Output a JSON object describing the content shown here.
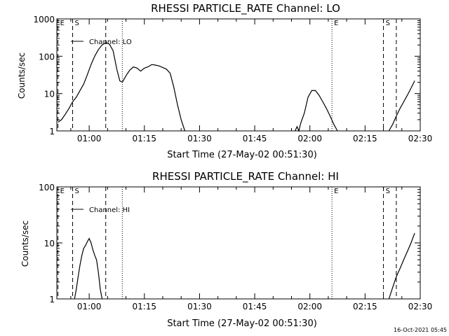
{
  "timestamp": "16-Oct-2021 05:45",
  "chart_data": [
    {
      "type": "line",
      "title": "RHESSI PARTICLE_RATE Channel: LO",
      "xlabel": "Start Time (27-May-02 00:51:30)",
      "ylabel": "Counts/sec",
      "y_scale": "log",
      "ylim": [
        1,
        1000
      ],
      "xlim_minutes": [
        -0.3,
        98.5
      ],
      "x_tick_labels": [
        "01:00",
        "01:15",
        "01:30",
        "01:45",
        "02:00",
        "02:15",
        "02:30"
      ],
      "x_tick_minutes": [
        8.5,
        23.5,
        38.5,
        53.5,
        68.5,
        83.5,
        98.5
      ],
      "y_tick_labels": [
        "1",
        "10",
        "100",
        "1000"
      ],
      "y_tick_values": [
        1,
        10,
        100,
        1000
      ],
      "legend": "top-left",
      "series": [
        {
          "name": "Channel: LO",
          "x": [
            0.0,
            1.0,
            2.0,
            3.0,
            4.0,
            5.0,
            6.0,
            7.0,
            8.0,
            9.0,
            10.0,
            11.0,
            12.0,
            13.0,
            14.0,
            15.0,
            16.0,
            16.8,
            17.5,
            18.5,
            19.5,
            20.5,
            21.5,
            22.5,
            23.5,
            24.5,
            25.5,
            26.5,
            27.5,
            28.5,
            29.5,
            30.5,
            31.5,
            32.5,
            33.5,
            34.5,
            64.5,
            65.0,
            65.5,
            66.0,
            67.0,
            68.0,
            69.0,
            70.0,
            71.0,
            72.0,
            73.0,
            74.0,
            75.0,
            76.0,
            90.0,
            91.0,
            92.0,
            93.0,
            94.0,
            95.0,
            96.0,
            97.0
          ],
          "y": [
            1.7,
            2.0,
            2.8,
            4.0,
            6.0,
            8.0,
            12.0,
            18.0,
            32.0,
            60.0,
            100.0,
            150.0,
            200.0,
            230.0,
            210.0,
            140.0,
            45.0,
            22.0,
            20.0,
            30.0,
            42.0,
            52.0,
            48.0,
            40.0,
            48.0,
            52.0,
            60.0,
            58.0,
            55.0,
            50.0,
            45.0,
            35.0,
            15.0,
            5.0,
            2.0,
            1.0,
            1.0,
            1.3,
            1.0,
            1.6,
            3.0,
            8.0,
            12.0,
            12.0,
            9.0,
            6.0,
            4.0,
            2.5,
            1.5,
            1.0,
            1.0,
            1.5,
            2.5,
            4.0,
            6.0,
            9.0,
            14.0,
            22.0
          ]
        }
      ],
      "markers": [
        {
          "label": "E",
          "minute": 0.0,
          "style": "dashed"
        },
        {
          "label": "S",
          "minute": 4.0,
          "style": "dashed"
        },
        {
          "label": "",
          "minute": 13.0,
          "style": "dashed"
        },
        {
          "label": "",
          "minute": 17.5,
          "style": "dotted"
        },
        {
          "label": "E",
          "minute": 74.5,
          "style": "dotted"
        },
        {
          "label": "S",
          "minute": 88.5,
          "style": "dashed"
        },
        {
          "label": "",
          "minute": 92.0,
          "style": "dashed"
        }
      ]
    },
    {
      "type": "line",
      "title": "RHESSI PARTICLE_RATE Channel: HI",
      "xlabel": "Start Time (27-May-02 00:51:30)",
      "ylabel": "Counts/sec",
      "y_scale": "log",
      "ylim": [
        1,
        100
      ],
      "xlim_minutes": [
        -0.3,
        98.5
      ],
      "x_tick_labels": [
        "01:00",
        "01:15",
        "01:30",
        "01:45",
        "02:00",
        "02:15",
        "02:30"
      ],
      "x_tick_minutes": [
        8.5,
        23.5,
        38.5,
        53.5,
        68.5,
        83.5,
        98.5
      ],
      "y_tick_labels": [
        "1",
        "10",
        "100"
      ],
      "y_tick_values": [
        1,
        10,
        100
      ],
      "legend": "top-left",
      "series": [
        {
          "name": "Channel: HI",
          "x": [
            4.5,
            5.0,
            5.5,
            6.0,
            6.5,
            7.0,
            7.5,
            8.0,
            8.5,
            9.0,
            9.5,
            10.0,
            10.5,
            11.0,
            11.5,
            12.0,
            90.0,
            91.0,
            92.0,
            93.0,
            94.0,
            95.0,
            96.0,
            97.0
          ],
          "y": [
            1.0,
            1.5,
            2.5,
            4.0,
            6.0,
            8.0,
            9.0,
            10.5,
            12.0,
            10.0,
            7.5,
            6.0,
            5.0,
            3.0,
            1.5,
            1.0,
            1.0,
            1.6,
            2.5,
            3.5,
            5.0,
            7.0,
            10.0,
            15.0
          ]
        }
      ],
      "markers": [
        {
          "label": "E",
          "minute": 0.0,
          "style": "dashed"
        },
        {
          "label": "S",
          "minute": 4.0,
          "style": "dashed"
        },
        {
          "label": "",
          "minute": 13.0,
          "style": "dashed"
        },
        {
          "label": "",
          "minute": 17.5,
          "style": "dotted"
        },
        {
          "label": "E",
          "minute": 74.5,
          "style": "dotted"
        },
        {
          "label": "S",
          "minute": 88.5,
          "style": "dashed"
        },
        {
          "label": "",
          "minute": 92.0,
          "style": "dashed"
        }
      ]
    }
  ]
}
